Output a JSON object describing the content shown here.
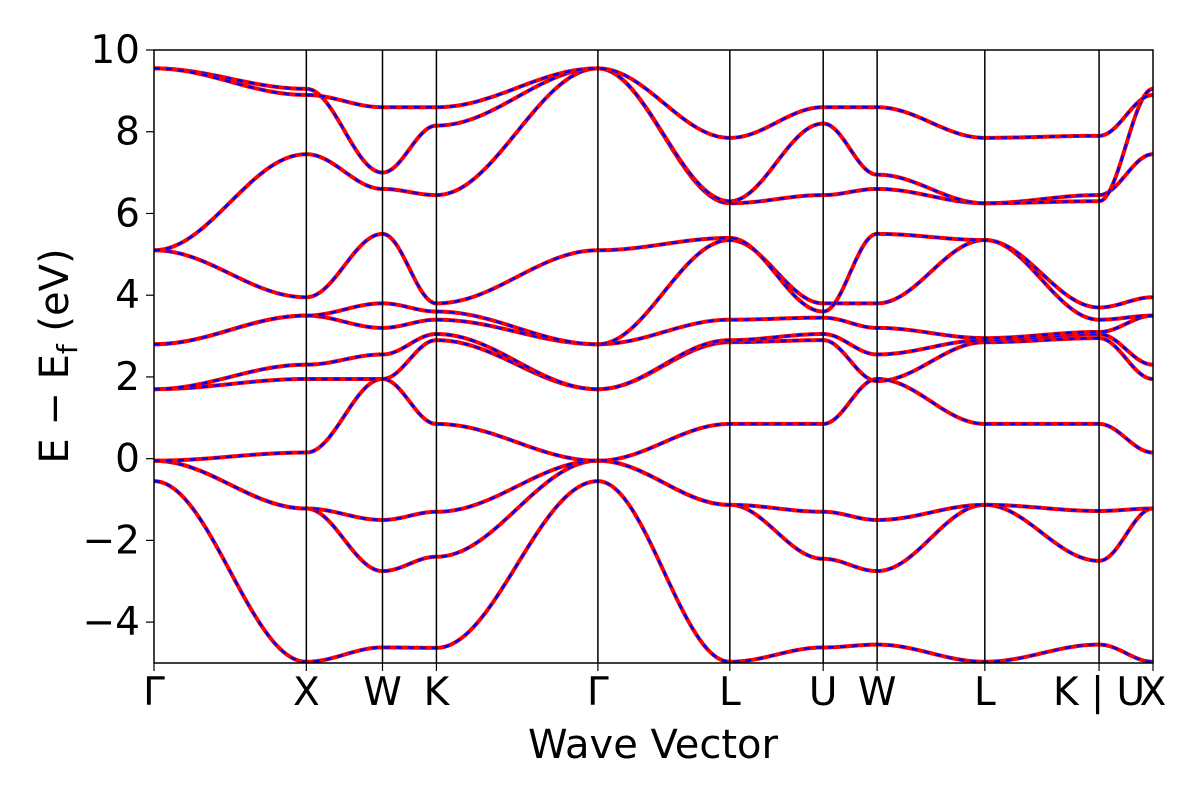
{
  "chart_data": {
    "type": "line",
    "title": "",
    "xlabel": "Wave Vector",
    "ylabel": {
      "main": "E − E",
      "sub": "f",
      "unit": " (eV)"
    },
    "ylim": [
      -5,
      10
    ],
    "yticks": [
      -4,
      -2,
      0,
      2,
      4,
      6,
      8,
      10
    ],
    "ytick_labels": [
      "−4",
      "−2",
      "0",
      "2",
      "4",
      "6",
      "8",
      "10"
    ],
    "kpath": [
      {
        "label": "Γ",
        "x": 0.0
      },
      {
        "label": "X",
        "x": 1.0
      },
      {
        "label": "W",
        "x": 1.5
      },
      {
        "label": "K",
        "x": 1.854
      },
      {
        "label": "Γ",
        "x": 2.914
      },
      {
        "label": "L",
        "x": 3.78
      },
      {
        "label": "U",
        "x": 4.393
      },
      {
        "label": "W",
        "x": 4.747
      },
      {
        "label": "L",
        "x": 5.454
      },
      {
        "label": "K | U",
        "x": 6.204
      },
      {
        "label": "X",
        "x": 6.558
      }
    ],
    "colors": {
      "set_a": "#ff0000",
      "set_b": "#0000ff",
      "frame": "#000000"
    },
    "grid": false,
    "legend": "none",
    "series": [
      {
        "values": [
          -0.55,
          -4.97,
          -4.62,
          -4.63,
          -0.55,
          -4.97,
          -4.62,
          -4.55,
          -4.97,
          -4.55,
          -4.97
        ]
      },
      {
        "values": [
          -0.05,
          -1.22,
          -2.75,
          -2.4,
          -0.05,
          -1.13,
          -2.45,
          -2.75,
          -1.13,
          -2.5,
          -1.22
        ]
      },
      {
        "values": [
          -0.05,
          -1.22,
          -1.5,
          -1.3,
          -0.05,
          -1.13,
          -1.3,
          -1.5,
          -1.13,
          -1.28,
          -1.22
        ]
      },
      {
        "values": [
          -0.05,
          0.15,
          1.95,
          0.85,
          -0.05,
          0.85,
          0.85,
          1.95,
          0.85,
          0.85,
          0.15
        ]
      },
      {
        "values": [
          1.7,
          1.95,
          1.95,
          2.9,
          1.7,
          2.85,
          2.9,
          1.9,
          2.85,
          2.95,
          1.95
        ]
      },
      {
        "values": [
          1.7,
          2.3,
          2.55,
          3.05,
          1.7,
          2.9,
          3.05,
          2.55,
          2.9,
          3.05,
          2.3
        ]
      },
      {
        "values": [
          2.8,
          3.5,
          3.2,
          3.4,
          2.8,
          3.4,
          3.45,
          3.2,
          2.95,
          3.1,
          3.5
        ]
      },
      {
        "values": [
          2.8,
          3.5,
          3.8,
          3.6,
          2.8,
          5.35,
          3.8,
          3.8,
          5.35,
          3.4,
          3.5
        ]
      },
      {
        "values": [
          5.1,
          3.95,
          5.5,
          3.8,
          5.1,
          5.4,
          3.6,
          5.5,
          5.35,
          3.7,
          3.95
        ]
      },
      {
        "values": [
          5.1,
          7.45,
          6.6,
          6.45,
          9.55,
          6.25,
          6.45,
          6.6,
          6.25,
          6.45,
          7.45
        ]
      },
      {
        "values": [
          9.55,
          9.05,
          7.0,
          8.15,
          9.55,
          6.3,
          8.2,
          6.95,
          6.25,
          6.3,
          9.05
        ]
      },
      {
        "values": [
          9.55,
          8.9,
          8.6,
          8.6,
          9.55,
          7.85,
          8.6,
          8.6,
          7.85,
          7.9,
          8.9
        ]
      }
    ]
  }
}
